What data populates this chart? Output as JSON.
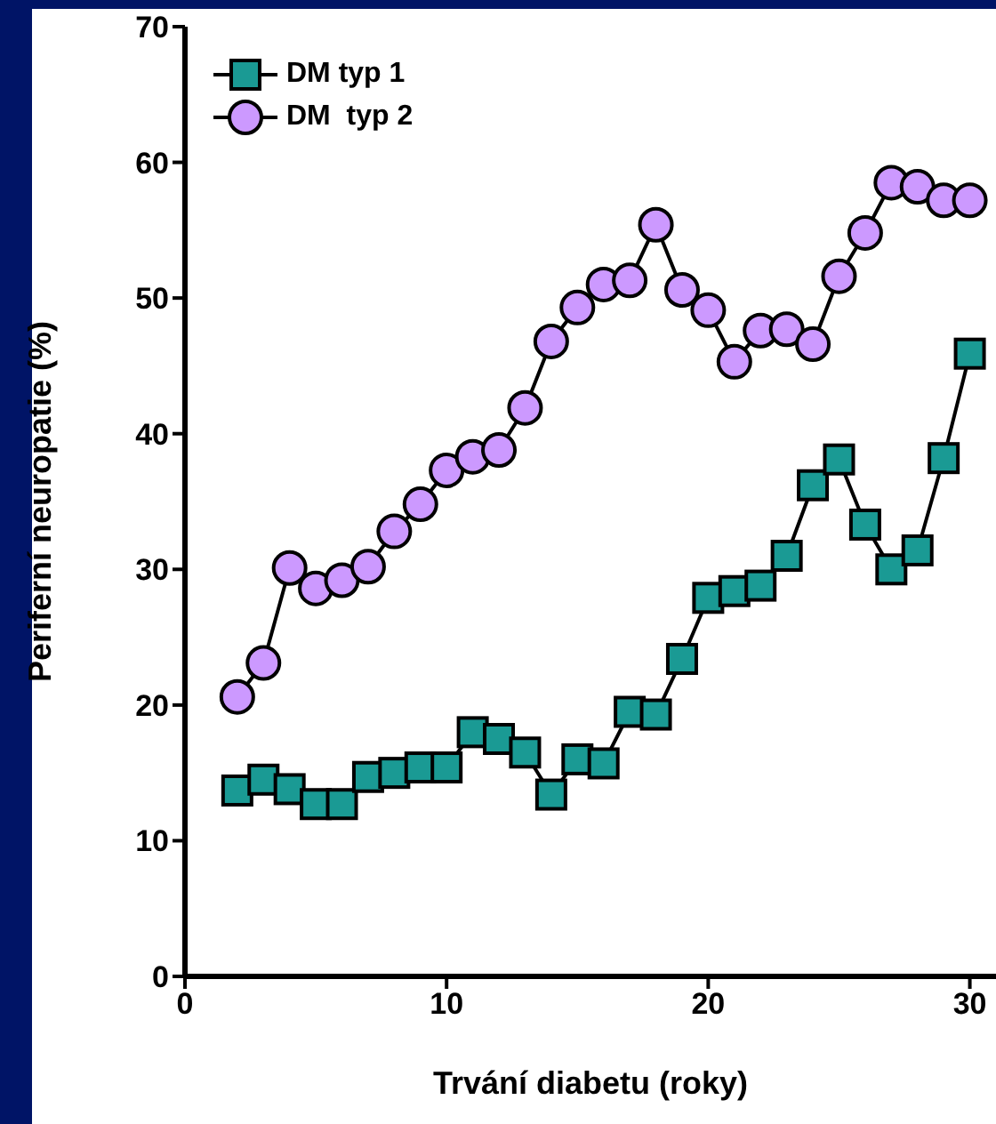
{
  "chart_data": {
    "type": "line",
    "xlabel": "Trvání diabetu (roky)",
    "ylabel": "Periferní neuropatie (%)",
    "x": [
      2,
      3,
      4,
      5,
      6,
      7,
      8,
      9,
      10,
      11,
      12,
      13,
      14,
      15,
      16,
      17,
      18,
      19,
      20,
      21,
      22,
      23,
      24,
      25,
      26,
      27,
      28,
      29,
      30
    ],
    "series": [
      {
        "name": "DM typ 1",
        "color": "#1a9a94",
        "marker": "square",
        "values": [
          13.7,
          14.5,
          13.8,
          12.7,
          12.7,
          14.7,
          15,
          15.4,
          15.4,
          18,
          17.5,
          16.5,
          13.4,
          16,
          15.7,
          19.5,
          19.3,
          23.4,
          27.9,
          28.4,
          28.8,
          31,
          36.2,
          38.1,
          33.3,
          30,
          31.4,
          38.2,
          45.9
        ]
      },
      {
        "name": "DM  typ 2",
        "color": "#cc99ff",
        "marker": "circle",
        "values": [
          20.6,
          23.1,
          30.1,
          28.6,
          29.2,
          30.2,
          32.8,
          34.8,
          37.3,
          38.3,
          38.8,
          41.9,
          46.8,
          49.3,
          51,
          51.3,
          55.4,
          50.6,
          49.1,
          45.3,
          47.6,
          47.7,
          46.6,
          51.6,
          54.8,
          58.5,
          58.2,
          57.2,
          57.2
        ]
      }
    ],
    "xlim": [
      0,
      31
    ],
    "xticks": [
      0,
      10,
      20,
      30
    ],
    "ylim": [
      0,
      70
    ],
    "yticks": [
      0,
      10,
      20,
      30,
      40,
      50,
      60,
      70
    ],
    "grid": false,
    "legend": "top left",
    "line_style": "solid"
  }
}
